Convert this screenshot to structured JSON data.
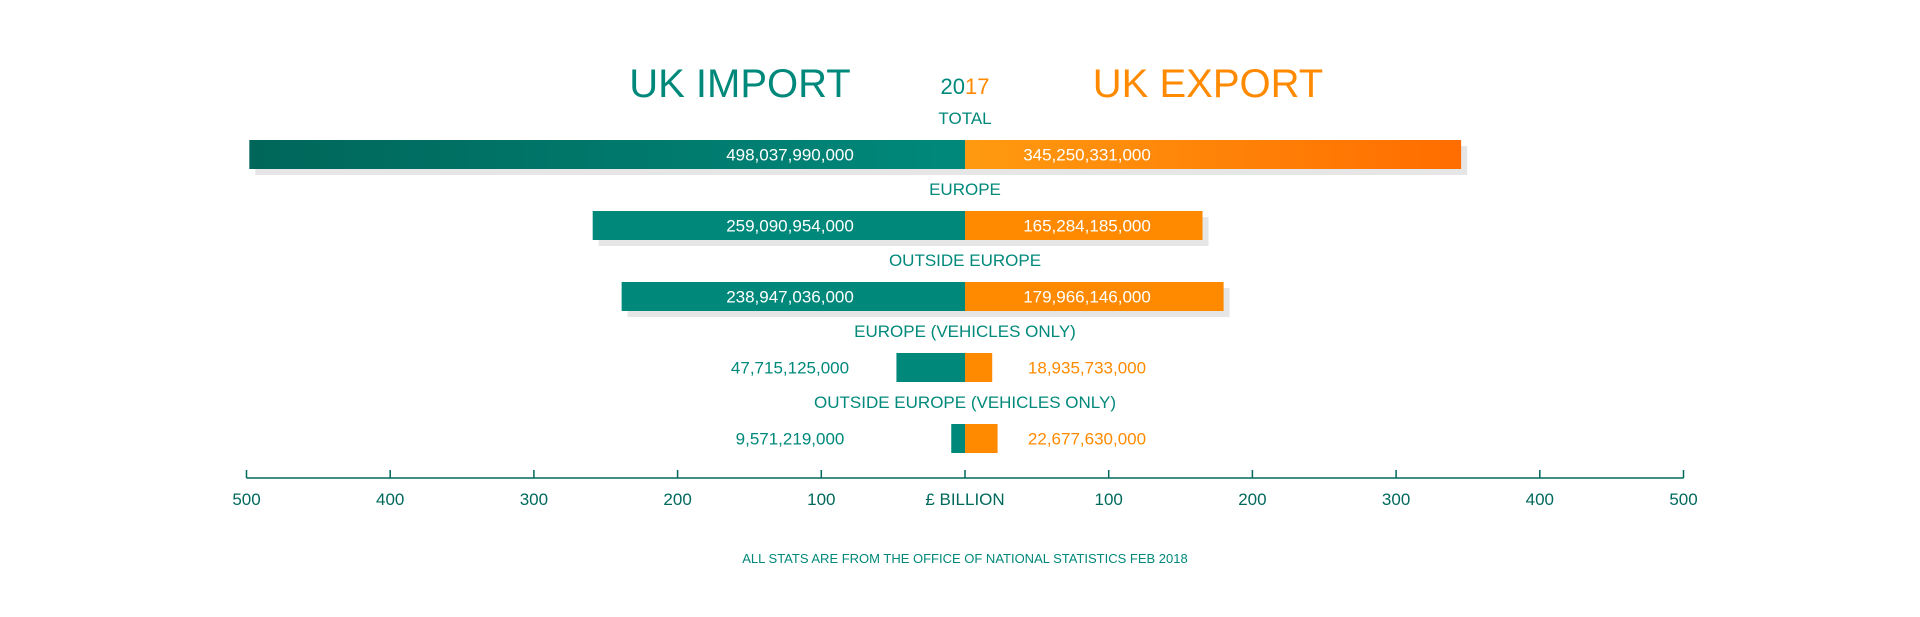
{
  "header": {
    "left_title": "UK IMPORT",
    "right_title": "UK EXPORT",
    "year_part1": "20",
    "year_part2": "17"
  },
  "chart_data": {
    "type": "bar",
    "orientation": "horizontal-diverging",
    "categories": [
      "TOTAL",
      "EUROPE",
      "OUTSIDE EUROPE",
      "EUROPE (VEHICLES ONLY)",
      "OUTSIDE EUROPE (VEHICLES ONLY)"
    ],
    "series": [
      {
        "name": "UK IMPORT",
        "values": [
          498037990000,
          259090954000,
          238947036000,
          47715125000,
          9571219000
        ],
        "labels": [
          "498,037,990,000",
          "259,090,954,000",
          "238,947,036,000",
          "47,715,125,000",
          "9,571,219,000"
        ]
      },
      {
        "name": "UK EXPORT",
        "values": [
          345250331000,
          165284185000,
          179966146000,
          18935733000,
          22677630000
        ],
        "labels": [
          "345,250,331,000",
          "165,284,185,000",
          "179,966,146,000",
          "18,935,733,000",
          "22,677,630,000"
        ]
      }
    ],
    "axis": {
      "center_label": "£ BILLION",
      "left_ticks": [
        "500",
        "400",
        "300",
        "200",
        "100"
      ],
      "right_ticks": [
        "100",
        "200",
        "300",
        "400",
        "500"
      ],
      "range_billion": [
        0,
        500
      ]
    },
    "inside_label_rows": 3,
    "colors": {
      "import": "#00897b",
      "import_dark": "#00695c",
      "export": "#ff8a00",
      "export_dark": "#ff6d00",
      "axis": "#00695c",
      "shadow": "#e6e6e6"
    }
  },
  "footer": {
    "source": "ALL STATS ARE FROM THE OFFICE OF NATIONAL STATISTICS FEB 2018"
  }
}
